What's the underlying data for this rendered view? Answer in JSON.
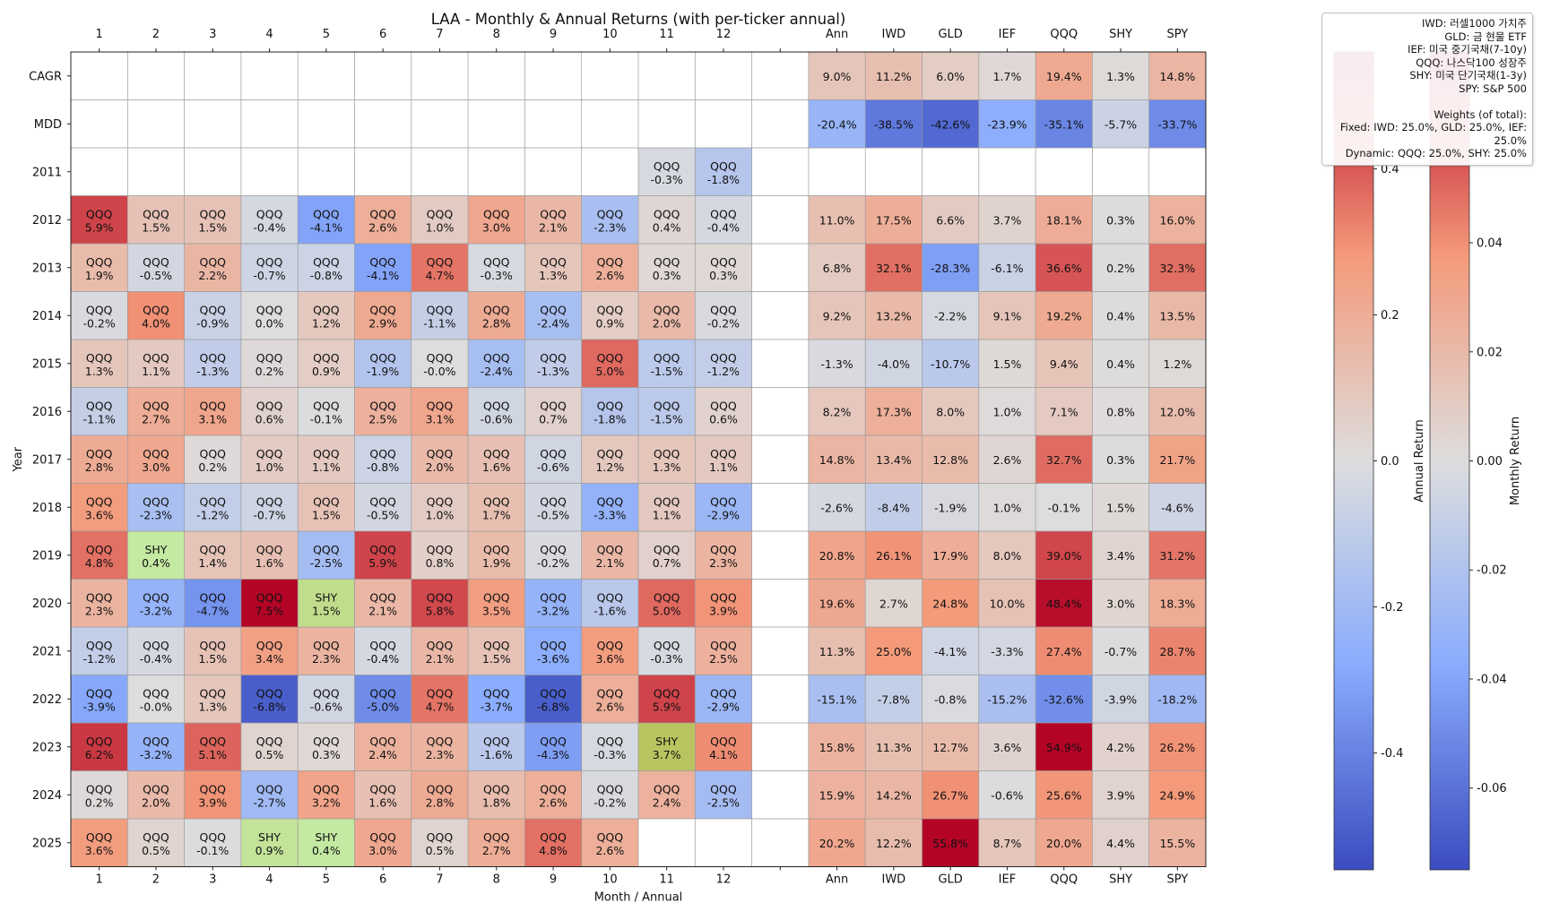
{
  "chart_data": {
    "type": "heatmap",
    "title": "LAA - Monthly & Annual Returns (with per-ticker annual)",
    "xlabel": "Month / Annual",
    "ylabel": "Year",
    "month_labels": [
      "1",
      "2",
      "3",
      "4",
      "5",
      "6",
      "7",
      "8",
      "9",
      "10",
      "11",
      "12"
    ],
    "annual_labels": [
      "Ann",
      "IWD",
      "GLD",
      "IEF",
      "QQQ",
      "SHY",
      "SPY"
    ],
    "row_labels": [
      "CAGR",
      "MDD",
      "2011",
      "2012",
      "2013",
      "2014",
      "2015",
      "2016",
      "2017",
      "2018",
      "2019",
      "2020",
      "2021",
      "2022",
      "2023",
      "2024",
      "2025"
    ],
    "monthly": [
      null,
      null,
      [
        null,
        null,
        null,
        null,
        null,
        null,
        null,
        null,
        null,
        null,
        [
          "QQQ",
          -0.3
        ],
        [
          "QQQ",
          -1.8
        ]
      ],
      [
        [
          "QQQ",
          5.9
        ],
        [
          "QQQ",
          1.5
        ],
        [
          "QQQ",
          1.5
        ],
        [
          "QQQ",
          -0.4
        ],
        [
          "QQQ",
          -4.1
        ],
        [
          "QQQ",
          2.6
        ],
        [
          "QQQ",
          1.0
        ],
        [
          "QQQ",
          3.0
        ],
        [
          "QQQ",
          2.1
        ],
        [
          "QQQ",
          -2.3
        ],
        [
          "QQQ",
          0.4
        ],
        [
          "QQQ",
          -0.4
        ]
      ],
      [
        [
          "QQQ",
          1.9
        ],
        [
          "QQQ",
          -0.5
        ],
        [
          "QQQ",
          2.2
        ],
        [
          "QQQ",
          -0.7
        ],
        [
          "QQQ",
          -0.8
        ],
        [
          "QQQ",
          -4.1
        ],
        [
          "QQQ",
          4.7
        ],
        [
          "QQQ",
          -0.3
        ],
        [
          "QQQ",
          1.3
        ],
        [
          "QQQ",
          2.6
        ],
        [
          "QQQ",
          0.3
        ],
        [
          "QQQ",
          0.3
        ]
      ],
      [
        [
          "QQQ",
          -0.2
        ],
        [
          "QQQ",
          4.0
        ],
        [
          "QQQ",
          -0.9
        ],
        [
          "QQQ",
          0.0
        ],
        [
          "QQQ",
          1.2
        ],
        [
          "QQQ",
          2.9
        ],
        [
          "QQQ",
          -1.1
        ],
        [
          "QQQ",
          2.8
        ],
        [
          "QQQ",
          -2.4
        ],
        [
          "QQQ",
          0.9
        ],
        [
          "QQQ",
          2.0
        ],
        [
          "QQQ",
          -0.2
        ]
      ],
      [
        [
          "QQQ",
          1.3
        ],
        [
          "QQQ",
          1.1
        ],
        [
          "QQQ",
          -1.3
        ],
        [
          "QQQ",
          0.2
        ],
        [
          "QQQ",
          0.9
        ],
        [
          "QQQ",
          -1.9
        ],
        [
          "QQQ",
          -0.0
        ],
        [
          "QQQ",
          -2.4
        ],
        [
          "QQQ",
          -1.3
        ],
        [
          "QQQ",
          5.0
        ],
        [
          "QQQ",
          -1.5
        ],
        [
          "QQQ",
          -1.2
        ]
      ],
      [
        [
          "QQQ",
          -1.1
        ],
        [
          "QQQ",
          2.7
        ],
        [
          "QQQ",
          3.1
        ],
        [
          "QQQ",
          0.6
        ],
        [
          "QQQ",
          -0.1
        ],
        [
          "QQQ",
          2.5
        ],
        [
          "QQQ",
          3.1
        ],
        [
          "QQQ",
          -0.6
        ],
        [
          "QQQ",
          0.7
        ],
        [
          "QQQ",
          -1.8
        ],
        [
          "QQQ",
          -1.5
        ],
        [
          "QQQ",
          0.6
        ]
      ],
      [
        [
          "QQQ",
          2.8
        ],
        [
          "QQQ",
          3.0
        ],
        [
          "QQQ",
          0.2
        ],
        [
          "QQQ",
          1.0
        ],
        [
          "QQQ",
          1.1
        ],
        [
          "QQQ",
          -0.8
        ],
        [
          "QQQ",
          2.0
        ],
        [
          "QQQ",
          1.6
        ],
        [
          "QQQ",
          -0.6
        ],
        [
          "QQQ",
          1.2
        ],
        [
          "QQQ",
          1.3
        ],
        [
          "QQQ",
          1.1
        ]
      ],
      [
        [
          "QQQ",
          3.6
        ],
        [
          "QQQ",
          -2.3
        ],
        [
          "QQQ",
          -1.2
        ],
        [
          "QQQ",
          -0.7
        ],
        [
          "QQQ",
          1.5
        ],
        [
          "QQQ",
          -0.5
        ],
        [
          "QQQ",
          1.0
        ],
        [
          "QQQ",
          1.7
        ],
        [
          "QQQ",
          -0.5
        ],
        [
          "QQQ",
          -3.3
        ],
        [
          "QQQ",
          1.1
        ],
        [
          "QQQ",
          -2.9
        ]
      ],
      [
        [
          "QQQ",
          4.8
        ],
        [
          "SHY",
          0.4
        ],
        [
          "QQQ",
          1.4
        ],
        [
          "QQQ",
          1.6
        ],
        [
          "QQQ",
          -2.5
        ],
        [
          "QQQ",
          5.9
        ],
        [
          "QQQ",
          0.8
        ],
        [
          "QQQ",
          1.9
        ],
        [
          "QQQ",
          -0.2
        ],
        [
          "QQQ",
          2.1
        ],
        [
          "QQQ",
          0.7
        ],
        [
          "QQQ",
          2.3
        ]
      ],
      [
        [
          "QQQ",
          2.3
        ],
        [
          "QQQ",
          -3.2
        ],
        [
          "QQQ",
          -4.7
        ],
        [
          "QQQ",
          7.5
        ],
        [
          "SHY",
          1.5
        ],
        [
          "QQQ",
          2.1
        ],
        [
          "QQQ",
          5.8
        ],
        [
          "QQQ",
          3.5
        ],
        [
          "QQQ",
          -3.2
        ],
        [
          "QQQ",
          -1.6
        ],
        [
          "QQQ",
          5.0
        ],
        [
          "QQQ",
          3.9
        ]
      ],
      [
        [
          "QQQ",
          -1.2
        ],
        [
          "QQQ",
          -0.4
        ],
        [
          "QQQ",
          1.5
        ],
        [
          "QQQ",
          3.4
        ],
        [
          "QQQ",
          2.3
        ],
        [
          "QQQ",
          -0.4
        ],
        [
          "QQQ",
          2.1
        ],
        [
          "QQQ",
          1.5
        ],
        [
          "QQQ",
          -3.6
        ],
        [
          "QQQ",
          3.6
        ],
        [
          "QQQ",
          -0.3
        ],
        [
          "QQQ",
          2.5
        ]
      ],
      [
        [
          "QQQ",
          -3.9
        ],
        [
          "QQQ",
          -0.0
        ],
        [
          "QQQ",
          1.3
        ],
        [
          "QQQ",
          -6.8
        ],
        [
          "QQQ",
          -0.6
        ],
        [
          "QQQ",
          -5.0
        ],
        [
          "QQQ",
          4.7
        ],
        [
          "QQQ",
          -3.7
        ],
        [
          "QQQ",
          -6.8
        ],
        [
          "QQQ",
          2.6
        ],
        [
          "QQQ",
          5.9
        ],
        [
          "QQQ",
          -2.9
        ]
      ],
      [
        [
          "QQQ",
          6.2
        ],
        [
          "QQQ",
          -3.2
        ],
        [
          "QQQ",
          5.1
        ],
        [
          "QQQ",
          0.5
        ],
        [
          "QQQ",
          0.3
        ],
        [
          "QQQ",
          2.4
        ],
        [
          "QQQ",
          2.3
        ],
        [
          "QQQ",
          -1.6
        ],
        [
          "QQQ",
          -4.3
        ],
        [
          "QQQ",
          -0.3
        ],
        [
          "SHY",
          3.7
        ],
        [
          "QQQ",
          4.1
        ]
      ],
      [
        [
          "QQQ",
          0.2
        ],
        [
          "QQQ",
          2.0
        ],
        [
          "QQQ",
          3.9
        ],
        [
          "QQQ",
          -2.7
        ],
        [
          "QQQ",
          3.2
        ],
        [
          "QQQ",
          1.6
        ],
        [
          "QQQ",
          2.8
        ],
        [
          "QQQ",
          1.8
        ],
        [
          "QQQ",
          2.6
        ],
        [
          "QQQ",
          -0.2
        ],
        [
          "QQQ",
          2.4
        ],
        [
          "QQQ",
          -2.5
        ]
      ],
      [
        [
          "QQQ",
          3.6
        ],
        [
          "QQQ",
          0.5
        ],
        [
          "QQQ",
          -0.1
        ],
        [
          "SHY",
          0.9
        ],
        [
          "SHY",
          0.4
        ],
        [
          "QQQ",
          3.0
        ],
        [
          "QQQ",
          0.5
        ],
        [
          "QQQ",
          2.7
        ],
        [
          "QQQ",
          4.8
        ],
        [
          "QQQ",
          2.6
        ],
        null,
        null
      ]
    ],
    "annual": [
      [
        9.0,
        11.2,
        6.0,
        1.7,
        19.4,
        1.3,
        14.8
      ],
      [
        -20.4,
        -38.5,
        -42.6,
        -23.9,
        -35.1,
        -5.7,
        -33.7
      ],
      null,
      [
        11.0,
        17.5,
        6.6,
        3.7,
        18.1,
        0.3,
        16.0
      ],
      [
        6.8,
        32.1,
        -28.3,
        -6.1,
        36.6,
        0.2,
        32.3
      ],
      [
        9.2,
        13.2,
        -2.2,
        9.1,
        19.2,
        0.4,
        13.5
      ],
      [
        -1.3,
        -4.0,
        -10.7,
        1.5,
        9.4,
        0.4,
        1.2
      ],
      [
        8.2,
        17.3,
        8.0,
        1.0,
        7.1,
        0.8,
        12.0
      ],
      [
        14.8,
        13.4,
        12.8,
        2.6,
        32.7,
        0.3,
        21.7
      ],
      [
        -2.6,
        -8.4,
        -1.9,
        1.0,
        -0.1,
        1.5,
        -4.6
      ],
      [
        20.8,
        26.1,
        17.9,
        8.0,
        39.0,
        3.4,
        31.2
      ],
      [
        19.6,
        2.7,
        24.8,
        10.0,
        48.4,
        3.0,
        18.3
      ],
      [
        11.3,
        25.0,
        -4.1,
        -3.3,
        27.4,
        -0.7,
        28.7
      ],
      [
        -15.1,
        -7.8,
        -0.8,
        -15.2,
        -32.6,
        -3.9,
        -18.2
      ],
      [
        15.8,
        11.3,
        12.7,
        3.6,
        54.9,
        4.2,
        26.2
      ],
      [
        15.9,
        14.2,
        26.7,
        -0.6,
        25.6,
        3.9,
        24.9
      ],
      [
        20.2,
        12.2,
        55.8,
        8.7,
        20.0,
        4.4,
        15.5
      ]
    ],
    "monthly_scale": [
      -7.5,
      7.5
    ],
    "annual_scale": [
      -50,
      50
    ],
    "colorbar_annual": {
      "label": "Annual Return",
      "ticks": [
        "0.4",
        "0.2",
        "0.0",
        "-0.2",
        "-0.4"
      ],
      "tick_values": [
        0.4,
        0.2,
        0.0,
        -0.2,
        -0.4
      ],
      "range": [
        -0.56,
        0.56
      ]
    },
    "colorbar_monthly": {
      "label": "Monthly Return",
      "ticks": [
        "0.04",
        "0.02",
        "0.00",
        "-0.02",
        "-0.04",
        "-0.06"
      ],
      "tick_values": [
        0.04,
        0.02,
        0.0,
        -0.02,
        -0.04,
        -0.06
      ],
      "range": [
        -0.075,
        0.075
      ]
    },
    "colors": {
      "low": "#3b4cc0",
      "mid": "#dddddd",
      "high": "#b40426",
      "shy_low": "#c4eaa4",
      "shy_high": "#b9c460"
    }
  },
  "legend": {
    "lines": [
      "IWD: 러셀1000 가치주",
      "GLD: 금 현물 ETF",
      "IEF: 미국 중기국채(7-10y)",
      "QQQ: 나스닥100 성장주",
      "SHY: 미국 단기국채(1-3y)",
      "SPY: S&P 500"
    ],
    "weights_title": "Weights (of total):",
    "fixed": "Fixed: IWD: 25.0%, GLD: 25.0%, IEF: 25.0%",
    "dynamic": "Dynamic: QQQ: 25.0%, SHY: 25.0%"
  }
}
